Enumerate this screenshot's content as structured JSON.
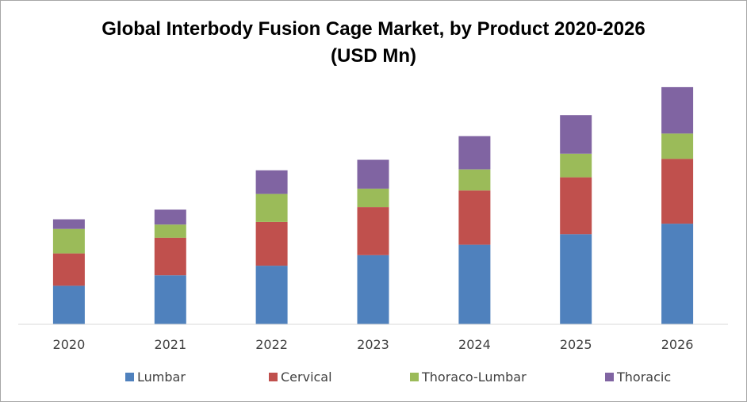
{
  "chart_data": {
    "type": "bar",
    "stacked": true,
    "title_line1": "Global Interbody Fusion Cage Market, by Product 2020-2026",
    "title_line2": "(USD Mn)",
    "categories": [
      "2020",
      "2021",
      "2022",
      "2023",
      "2024",
      "2025",
      "2026"
    ],
    "series": [
      {
        "name": "Lumbar",
        "color": "#4f81bd",
        "values": [
          44,
          56,
          67,
          79,
          91,
          103,
          115
        ]
      },
      {
        "name": "Cervical",
        "color": "#c0504d",
        "values": [
          37,
          43,
          50,
          55,
          62,
          65,
          74
        ]
      },
      {
        "name": "Thoraco-Lumbar",
        "color": "#9bbb59",
        "values": [
          28,
          15,
          32,
          21,
          24,
          27,
          29
        ]
      },
      {
        "name": "Thoracic",
        "color": "#8064a2",
        "values": [
          11,
          17,
          27,
          33,
          38,
          44,
          53
        ]
      }
    ],
    "ylim": [
      0,
      280
    ],
    "grid": false,
    "legend_position": "bottom"
  }
}
